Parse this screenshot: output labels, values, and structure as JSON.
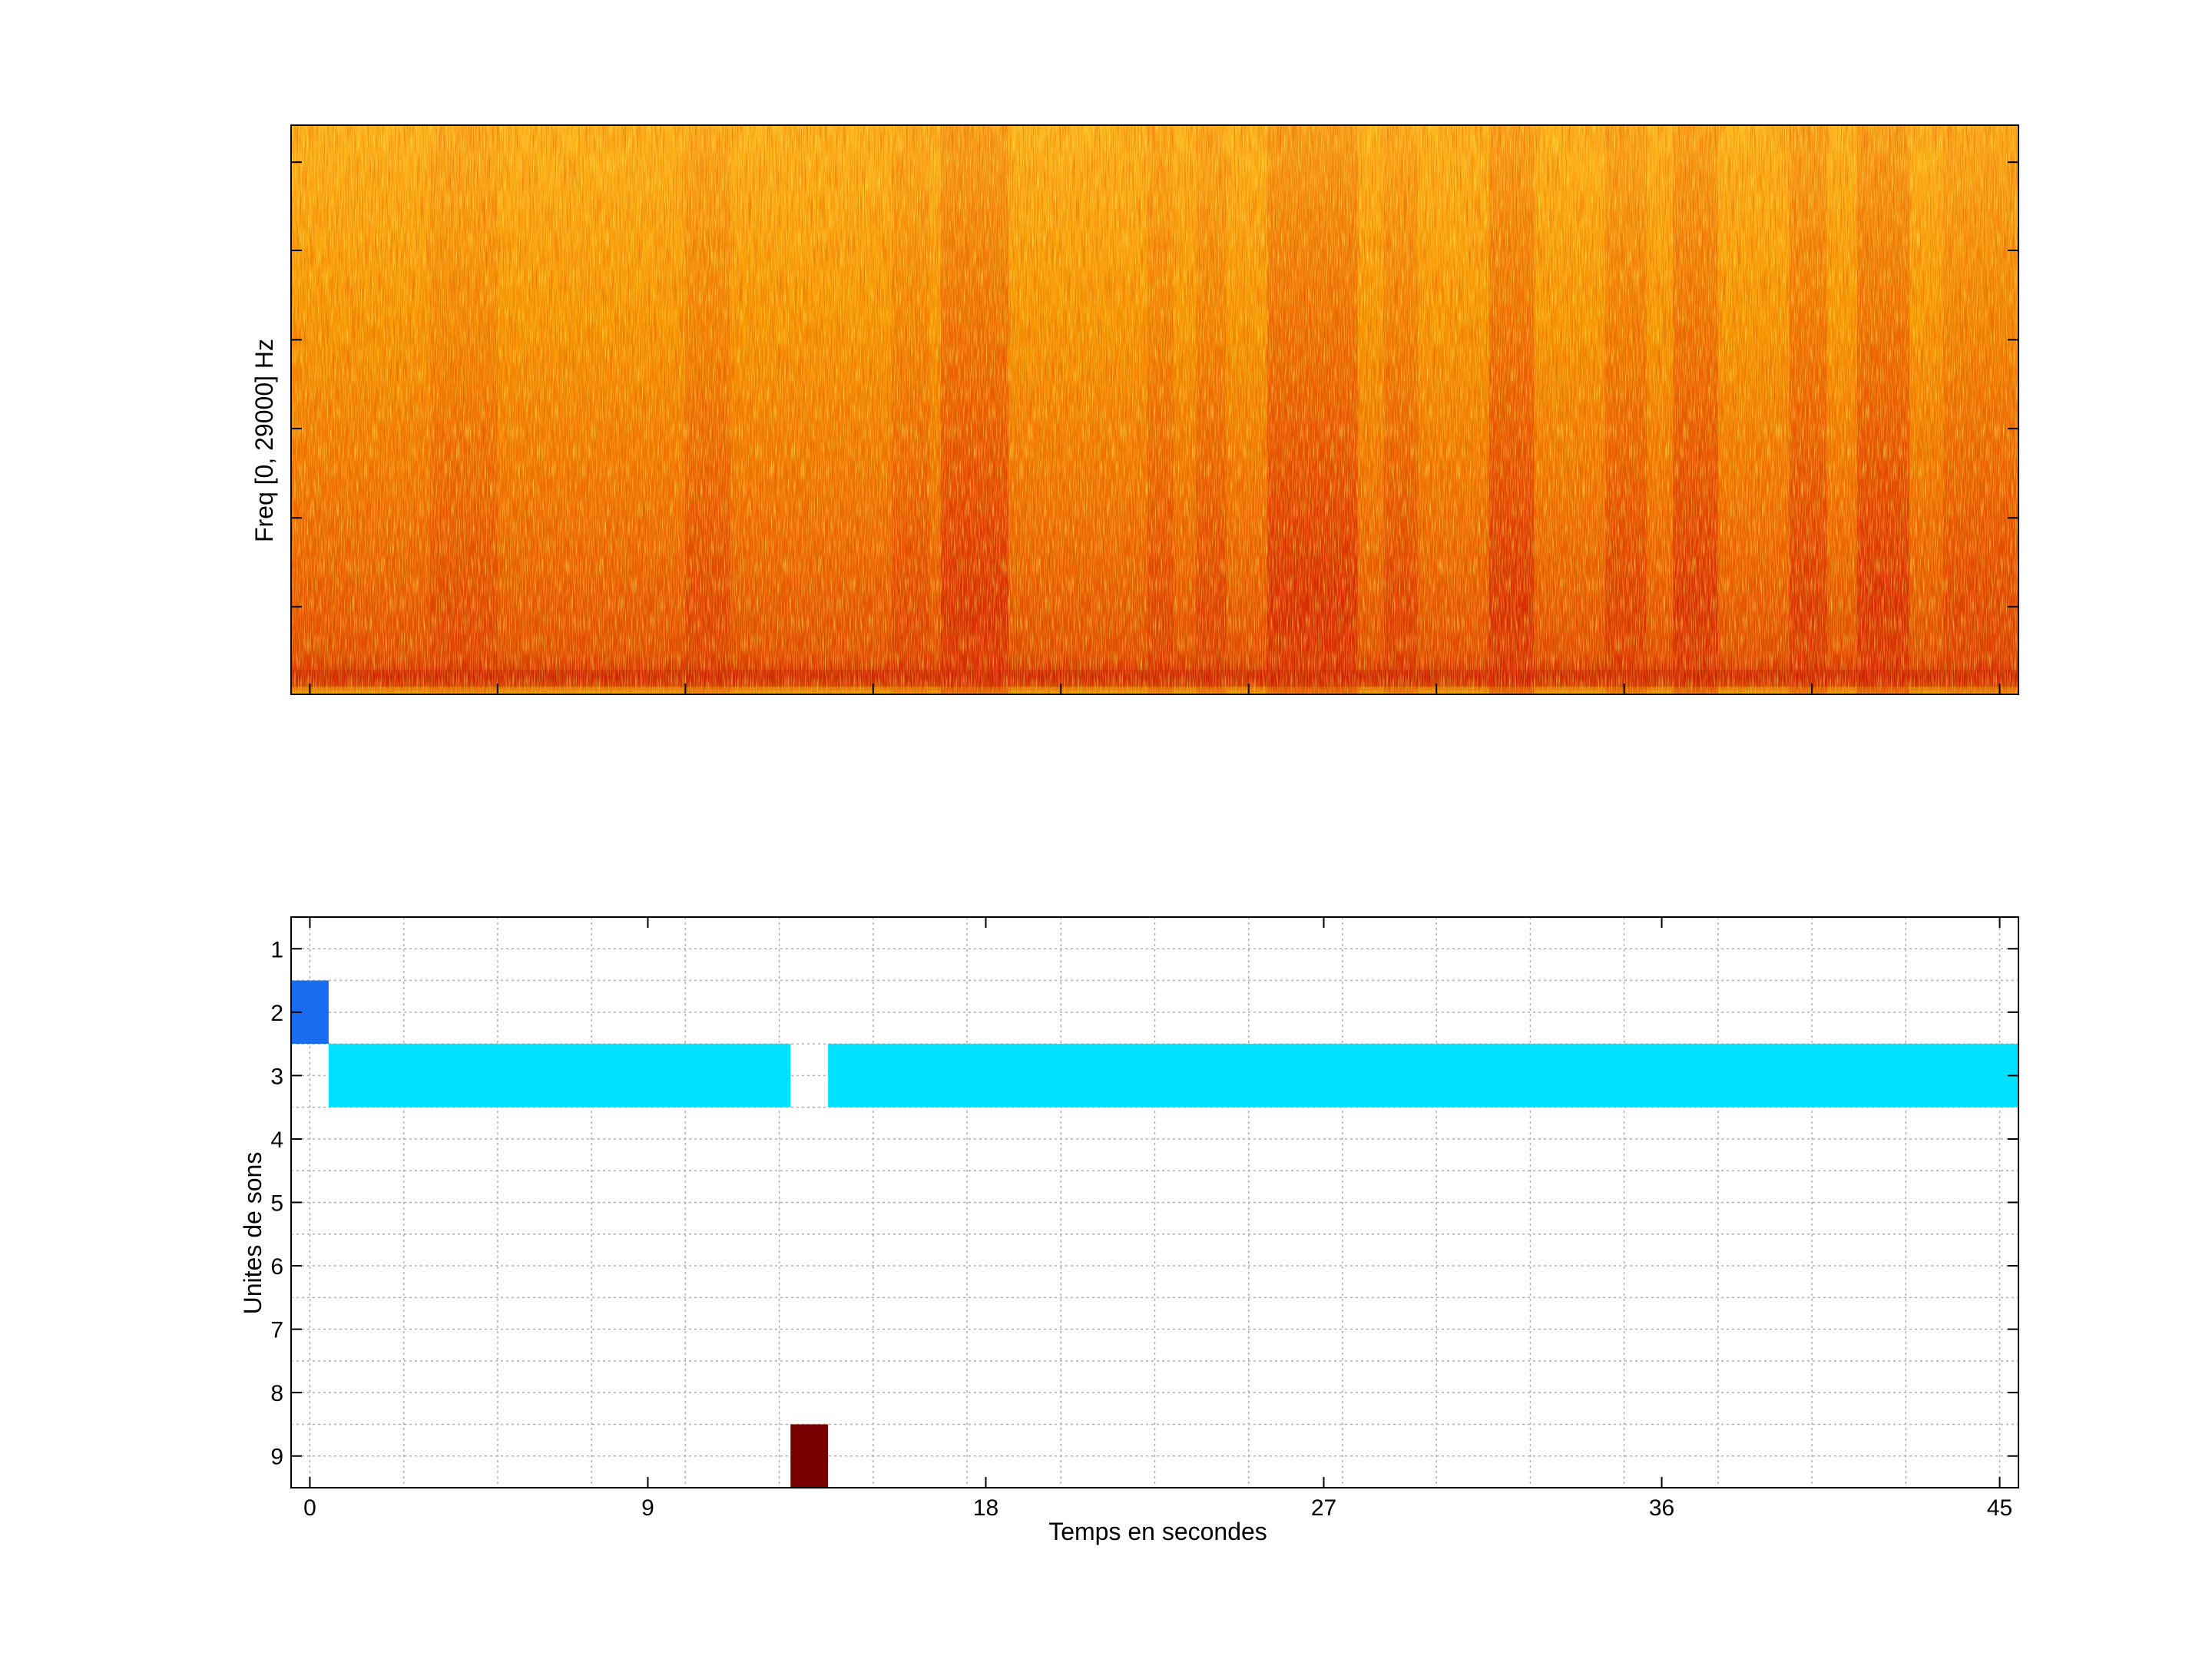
{
  "chart_data": [
    {
      "type": "heatmap",
      "title": "",
      "xlabel": "",
      "ylabel": "Freq [0, 29000] Hz",
      "ylim": [
        0,
        29000
      ],
      "y_tick_labels": [],
      "x_tick_labels": [],
      "colormap": [
        "#d62800",
        "#e84a00",
        "#f07a00",
        "#f8a800",
        "#ffd21a"
      ],
      "energy_bands": [
        {
          "t_start": 3.2,
          "t_end": 5.0,
          "strength": 0.35
        },
        {
          "t_start": 10.0,
          "t_end": 11.2,
          "strength": 0.45
        },
        {
          "t_start": 15.5,
          "t_end": 16.5,
          "strength": 0.4
        },
        {
          "t_start": 16.8,
          "t_end": 18.6,
          "strength": 0.9
        },
        {
          "t_start": 22.3,
          "t_end": 23.0,
          "strength": 0.45
        },
        {
          "t_start": 23.6,
          "t_end": 24.4,
          "strength": 0.5
        },
        {
          "t_start": 25.5,
          "t_end": 27.9,
          "strength": 0.95
        },
        {
          "t_start": 28.6,
          "t_end": 29.5,
          "strength": 0.55
        },
        {
          "t_start": 31.4,
          "t_end": 32.6,
          "strength": 0.9
        },
        {
          "t_start": 34.5,
          "t_end": 35.6,
          "strength": 0.6
        },
        {
          "t_start": 36.3,
          "t_end": 37.5,
          "strength": 0.85
        },
        {
          "t_start": 39.4,
          "t_end": 40.4,
          "strength": 0.75
        },
        {
          "t_start": 41.2,
          "t_end": 42.6,
          "strength": 0.9
        },
        {
          "t_start": 43.5,
          "t_end": 45.4,
          "strength": 0.45
        }
      ],
      "xlim": [
        -0.5,
        45.5
      ]
    },
    {
      "type": "heatmap",
      "title": "",
      "xlabel": "Temps en secondes",
      "ylabel": "Unites de sons",
      "x_ticks": [
        0,
        9,
        18,
        27,
        36,
        45
      ],
      "y_ticks": [
        1,
        2,
        3,
        4,
        5,
        6,
        7,
        8,
        9
      ],
      "xlim": [
        -0.5,
        45.5
      ],
      "ylim": [
        0.5,
        9.5
      ],
      "grid": true,
      "segments": [
        {
          "unit": 2,
          "t_start": -0.5,
          "t_end": 0.5,
          "color": "#1a6cf0"
        },
        {
          "unit": 3,
          "t_start": 0.5,
          "t_end": 12.8,
          "color": "#00e0ff"
        },
        {
          "unit": 3,
          "t_start": 13.8,
          "t_end": 45.5,
          "color": "#00e0ff"
        },
        {
          "unit": 9,
          "t_start": 12.8,
          "t_end": 13.8,
          "color": "#780000"
        }
      ]
    }
  ]
}
